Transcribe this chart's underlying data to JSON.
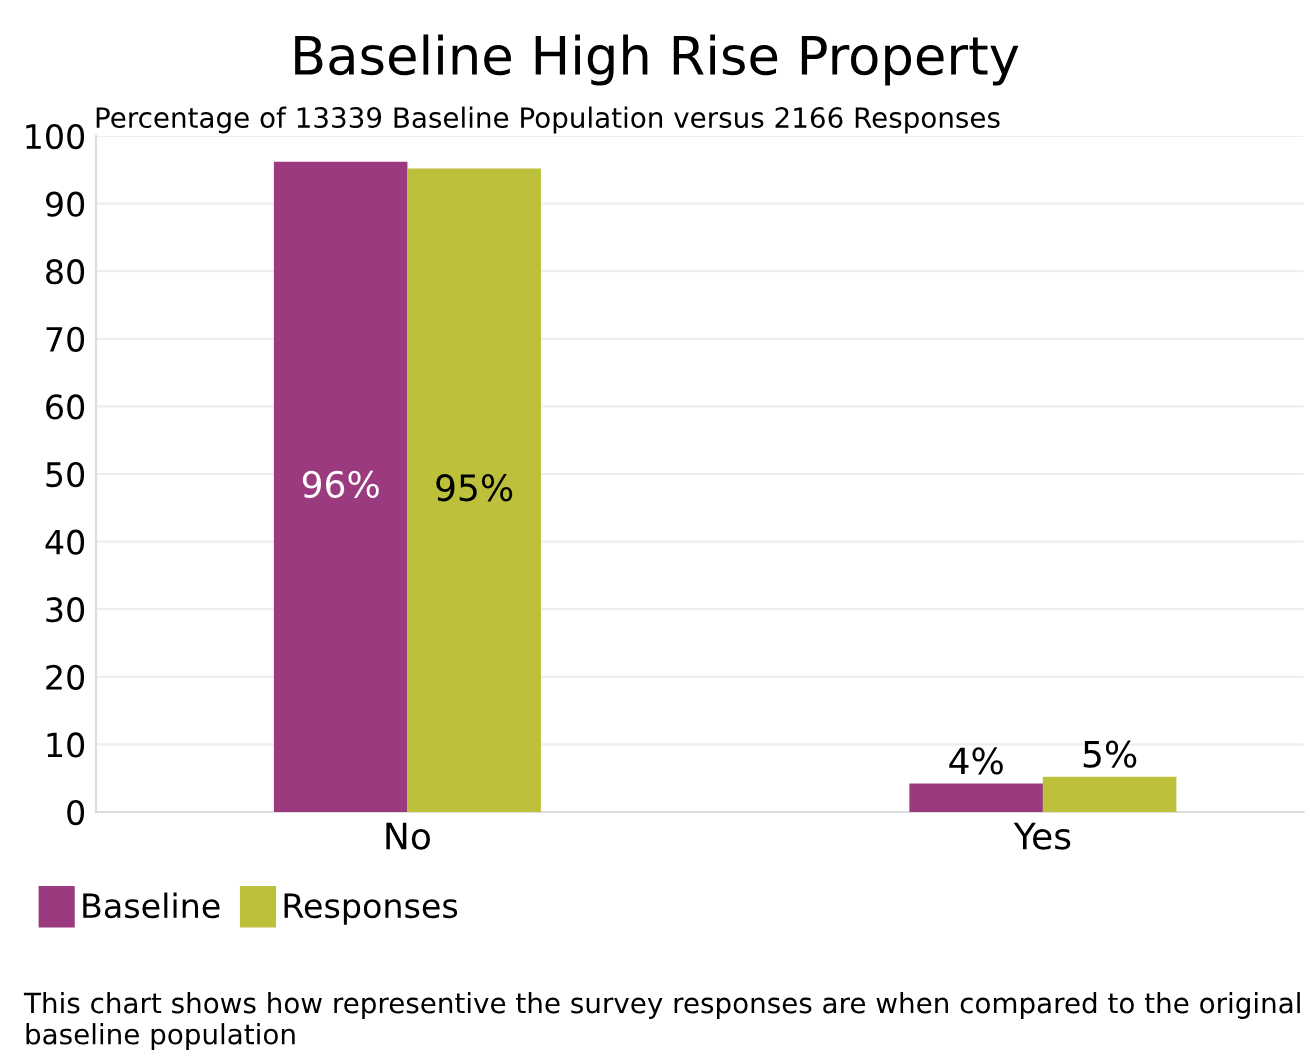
{
  "chart_data": {
    "type": "bar",
    "title": "Baseline High Rise Property",
    "subtitle": "Percentage of 13339 Baseline Population versus 2166 Responses",
    "categories": [
      "No",
      "Yes"
    ],
    "series": [
      {
        "name": "Baseline",
        "color": "#9b3a7e",
        "values": [
          96,
          4
        ],
        "value_labels": [
          "96%",
          "4%"
        ]
      },
      {
        "name": "Responses",
        "color": "#bcc03a",
        "values": [
          95,
          5
        ],
        "value_labels": [
          "95%",
          "5%"
        ]
      }
    ],
    "ylim": [
      0,
      100
    ],
    "yticks": [
      0,
      10,
      20,
      30,
      40,
      50,
      60,
      70,
      80,
      90,
      100
    ],
    "grid": "y",
    "legend": "bottom left",
    "annotations": [
      "This chart shows how representive the survey responses are when compared to the original baseline population"
    ]
  }
}
